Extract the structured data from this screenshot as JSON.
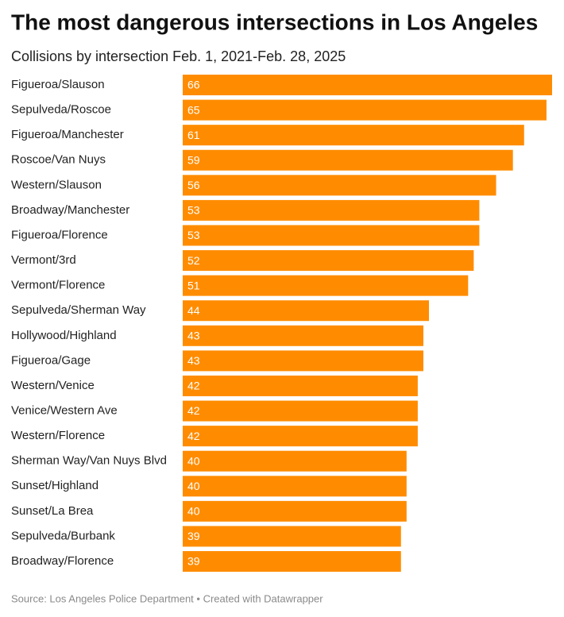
{
  "chart_data": {
    "type": "bar",
    "orientation": "horizontal",
    "title": "The most dangerous intersections in Los Angeles",
    "subtitle": "Collisions by intersection Feb. 1, 2021-Feb. 28, 2025",
    "categories": [
      "Figueroa/Slauson",
      "Sepulveda/Roscoe",
      "Figueroa/Manchester",
      "Roscoe/Van Nuys",
      "Western/Slauson",
      "Broadway/Manchester",
      "Figueroa/Florence",
      "Vermont/3rd",
      "Vermont/Florence",
      "Sepulveda/Sherman Way",
      "Hollywood/Highland",
      "Figueroa/Gage",
      "Western/Venice",
      "Venice/Western Ave",
      "Western/Florence",
      "Sherman Way/Van Nuys Blvd",
      "Sunset/Highland",
      "Sunset/La Brea",
      "Sepulveda/Burbank",
      "Broadway/Florence"
    ],
    "values": [
      66,
      65,
      61,
      59,
      56,
      53,
      53,
      52,
      51,
      44,
      43,
      43,
      42,
      42,
      42,
      40,
      40,
      40,
      39,
      39
    ],
    "color": "#ff8c00",
    "source": "Source: Los Angeles Police Department • Created with Datawrapper"
  }
}
